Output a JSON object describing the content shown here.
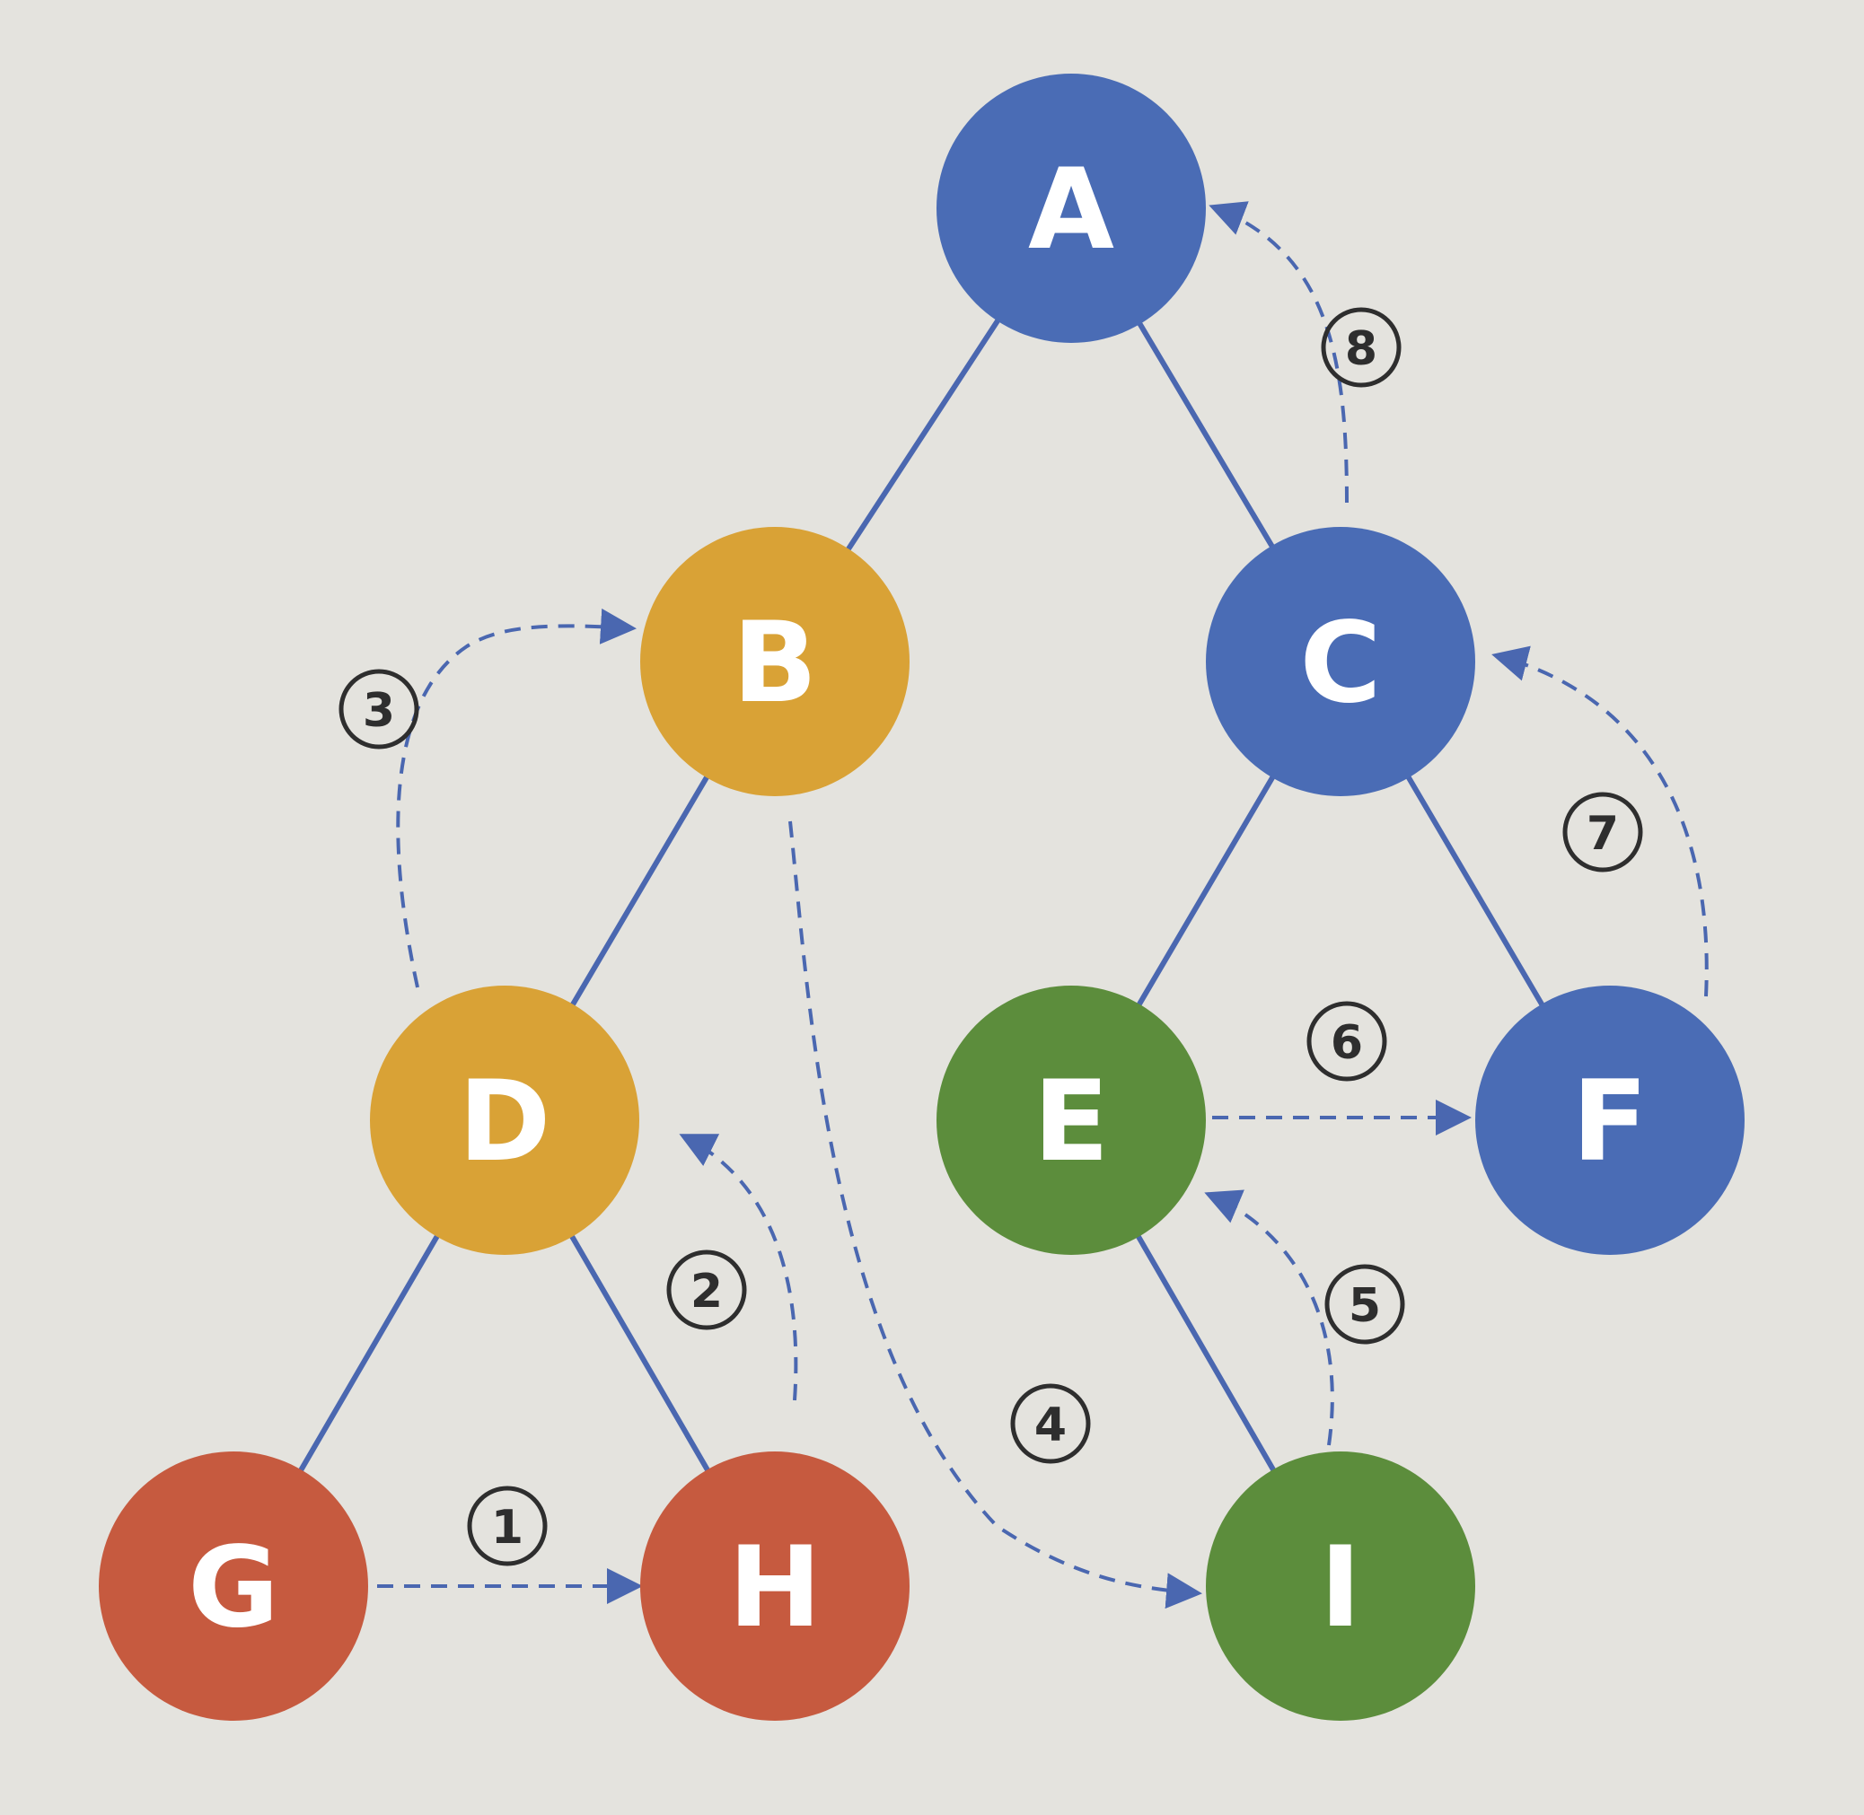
{
  "colors": {
    "blue": "#4a6cb5",
    "orange": "#d9a236",
    "green": "#5c8d3c",
    "red": "#c65a3f",
    "edge": "#4a67b0",
    "arrow": "#4a67b0"
  },
  "nodes": [
    {
      "id": "A",
      "label": "A",
      "color": "blue"
    },
    {
      "id": "B",
      "label": "B",
      "color": "orange"
    },
    {
      "id": "C",
      "label": "C",
      "color": "blue"
    },
    {
      "id": "D",
      "label": "D",
      "color": "orange"
    },
    {
      "id": "E",
      "label": "E",
      "color": "green"
    },
    {
      "id": "F",
      "label": "F",
      "color": "blue"
    },
    {
      "id": "G",
      "label": "G",
      "color": "red"
    },
    {
      "id": "H",
      "label": "H",
      "color": "red"
    },
    {
      "id": "I",
      "label": "I",
      "color": "green"
    }
  ],
  "edges": [
    {
      "from": "A",
      "to": "B"
    },
    {
      "from": "A",
      "to": "C"
    },
    {
      "from": "B",
      "to": "D"
    },
    {
      "from": "C",
      "to": "E"
    },
    {
      "from": "C",
      "to": "F"
    },
    {
      "from": "D",
      "to": "G"
    },
    {
      "from": "D",
      "to": "H"
    },
    {
      "from": "E",
      "to": "I"
    }
  ],
  "steps": [
    {
      "label": "1",
      "from": "G",
      "to": "H"
    },
    {
      "label": "2",
      "from": "H",
      "to": "D"
    },
    {
      "label": "3",
      "from": "D",
      "to": "B"
    },
    {
      "label": "4",
      "from": "B",
      "to": "I"
    },
    {
      "label": "5",
      "from": "I",
      "to": "E"
    },
    {
      "label": "6",
      "from": "E",
      "to": "F"
    },
    {
      "label": "7",
      "from": "F",
      "to": "C"
    },
    {
      "label": "8",
      "from": "C",
      "to": "A"
    }
  ]
}
